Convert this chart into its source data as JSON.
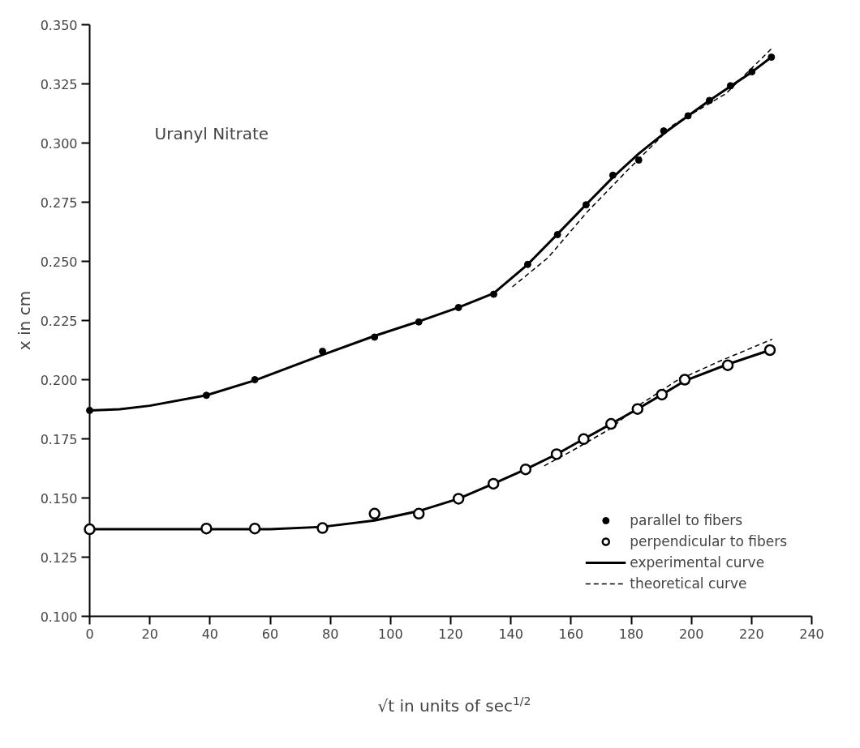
{
  "chart_data": {
    "type": "scatter",
    "xlabel": "√t in units of sec$^{1/2}$",
    "ylabel": "x in cm",
    "annotations": [
      "Uranyl Nitrate"
    ],
    "xlim": [
      0,
      240
    ],
    "xticks": [
      0,
      20,
      40,
      60,
      80,
      100,
      120,
      140,
      160,
      180,
      200,
      220,
      240
    ],
    "ylim": [
      0.1,
      0.35
    ],
    "yticks": [
      {
        "value": 0.1,
        "label": "0.100"
      },
      {
        "value": 0.125,
        "label": "0.125"
      },
      {
        "value": 0.15,
        "label": "0.150"
      },
      {
        "value": 0.175,
        "label": "0.175"
      },
      {
        "value": 0.2,
        "label": "0.200"
      },
      {
        "value": 0.225,
        "label": "0.225"
      },
      {
        "value": 0.25,
        "label": "0.250"
      },
      {
        "value": 0.275,
        "label": "0.275"
      },
      {
        "value": 0.3,
        "label": "0.300"
      },
      {
        "value": 0.325,
        "label": "0.325"
      },
      {
        "value": 0.35,
        "label": "0.350"
      }
    ],
    "grid": false,
    "legend": "bottom right",
    "series": [
      {
        "name": "parallel to fibers",
        "type": "scatter",
        "marker": "circle",
        "color": "#000000",
        "x": [
          0,
          38.8,
          54.9,
          77.4,
          94.7,
          109.4,
          122.6,
          134.3,
          145.6,
          155.5,
          165.0,
          173.9,
          182.5,
          190.8,
          198.9,
          206.0,
          213.0,
          220.1,
          226.6
        ],
        "values": [
          0.187,
          0.1934,
          0.2,
          0.212,
          0.218,
          0.2244,
          0.2305,
          0.2361,
          0.2487,
          0.2613,
          0.2739,
          0.2864,
          0.2928,
          0.3051,
          0.3115,
          0.318,
          0.3242,
          0.3301,
          0.3363
        ]
      },
      {
        "name": "perpendicular to fibers",
        "type": "scatter",
        "marker": "circle_open",
        "color": "#000000",
        "x": [
          0,
          38.8,
          54.9,
          77.4,
          94.7,
          109.4,
          122.6,
          134.2,
          144.9,
          155.2,
          164.2,
          173.3,
          182.1,
          190.2,
          197.8,
          212.1,
          226.1
        ],
        "values": [
          0.1368,
          0.1371,
          0.1371,
          0.1373,
          0.1434,
          0.1434,
          0.1497,
          0.156,
          0.1621,
          0.1685,
          0.1749,
          0.1813,
          0.1876,
          0.1937,
          0.2,
          0.2061,
          0.2125
        ]
      },
      {
        "name": "experimental curve",
        "type": "line",
        "line_style": "solid",
        "color": "#000000",
        "x": [
          0,
          10,
          20,
          38.8,
          54.9,
          77.4,
          94.7,
          109.4,
          122.6,
          134.3,
          145.6,
          155.5,
          165,
          173.9,
          182.5,
          190.8,
          198.9,
          206,
          213,
          220.1,
          226.6
        ],
        "values": [
          0.187,
          0.1875,
          0.189,
          0.1934,
          0.1997,
          0.2105,
          0.2185,
          0.2246,
          0.2305,
          0.2365,
          0.2487,
          0.2615,
          0.274,
          0.2855,
          0.2955,
          0.304,
          0.3115,
          0.318,
          0.324,
          0.33,
          0.3363
        ]
      },
      {
        "type": "line",
        "line_style": "solid",
        "color": "#000000",
        "x": [
          0,
          60,
          77.4,
          94.7,
          109.4,
          122.6,
          134.2,
          144.9,
          155.2,
          164.2,
          173.3,
          182.1,
          190.2,
          197.8,
          212.1,
          226.1
        ],
        "values": [
          0.1368,
          0.1368,
          0.1378,
          0.1405,
          0.1445,
          0.1497,
          0.156,
          0.1621,
          0.1685,
          0.1749,
          0.1813,
          0.1876,
          0.1937,
          0.1995,
          0.2065,
          0.2125
        ]
      },
      {
        "name": "theoretical curve",
        "type": "line",
        "line_style": "dashed",
        "color": "#000000",
        "x": [
          140.5,
          152.4,
          165.3,
          178.4,
          193.8,
          211.5,
          226.8
        ],
        "values": [
          0.2392,
          0.2516,
          0.2708,
          0.288,
          0.3075,
          0.3209,
          0.3401
        ]
      },
      {
        "type": "line",
        "line_style": "dashed",
        "color": "#000000",
        "x": [
          151.1,
          160,
          173.1,
          182.8,
          195,
          209,
          226.9
        ],
        "values": [
          0.1636,
          0.1697,
          0.1793,
          0.1894,
          0.1995,
          0.2076,
          0.2171
        ]
      }
    ]
  }
}
